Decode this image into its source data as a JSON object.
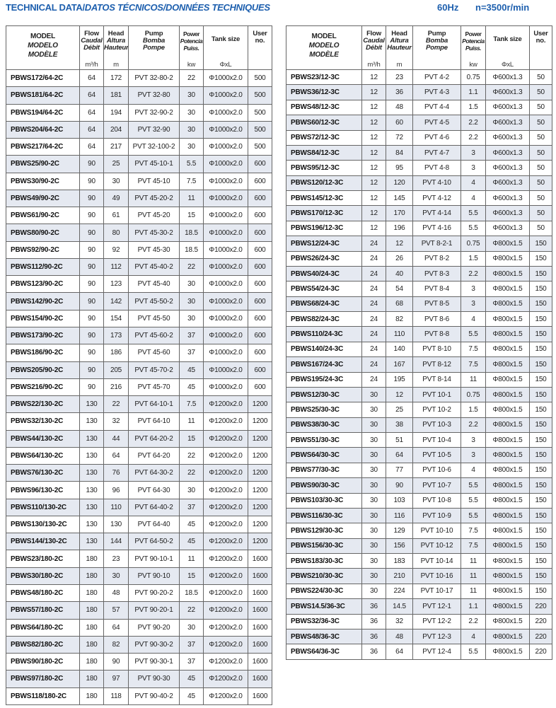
{
  "title": {
    "main": "TECHNICAL DATA/",
    "italic": "DATOS TÉCNICOS/DONNÉES TECHNIQUES"
  },
  "frequency": "60Hz",
  "speed": "n=3500r/min",
  "colors": {
    "title": "#1d5fae",
    "alt_row": "#e5e9f1"
  },
  "headers": {
    "model": [
      "MODEL",
      "MODELO",
      "MODÈLE"
    ],
    "flow": [
      "Flow",
      "Caudal",
      "Débit"
    ],
    "head": [
      "Head",
      "Altura",
      "Hauteur"
    ],
    "pump": [
      "Pump",
      "Bomba",
      "Pompe"
    ],
    "power": [
      "Power",
      "Potencia",
      "Puiss."
    ],
    "tank": "Tank size",
    "user": [
      "User",
      "no."
    ],
    "units": {
      "flow": "m³/h",
      "head": "m",
      "power": "kw",
      "tank": "ΦxL"
    }
  },
  "left_rows": [
    [
      "PBWS172/64-2C",
      "64",
      "172",
      "PVT 32-80-2",
      "22",
      "Φ1000x2.0",
      "500"
    ],
    [
      "PBWS181/64-2C",
      "64",
      "181",
      "PVT 32-80",
      "30",
      "Φ1000x2.0",
      "500"
    ],
    [
      "PBWS194/64-2C",
      "64",
      "194",
      "PVT 32-90-2",
      "30",
      "Φ1000x2.0",
      "500"
    ],
    [
      "PBWS204/64-2C",
      "64",
      "204",
      "PVT 32-90",
      "30",
      "Φ1000x2.0",
      "500"
    ],
    [
      "PBWS217/64-2C",
      "64",
      "217",
      "PVT 32-100-2",
      "30",
      "Φ1000x2.0",
      "500"
    ],
    [
      "PBWS25/90-2C",
      "90",
      "25",
      "PVT 45-10-1",
      "5.5",
      "Φ1000x2.0",
      "600"
    ],
    [
      "PBWS30/90-2C",
      "90",
      "30",
      "PVT 45-10",
      "7.5",
      "Φ1000x2.0",
      "600"
    ],
    [
      "PBWS49/90-2C",
      "90",
      "49",
      "PVT 45-20-2",
      "11",
      "Φ1000x2.0",
      "600"
    ],
    [
      "PBWS61/90-2C",
      "90",
      "61",
      "PVT 45-20",
      "15",
      "Φ1000x2.0",
      "600"
    ],
    [
      "PBWS80/90-2C",
      "90",
      "80",
      "PVT 45-30-2",
      "18.5",
      "Φ1000x2.0",
      "600"
    ],
    [
      "PBWS92/90-2C",
      "90",
      "92",
      "PVT 45-30",
      "18.5",
      "Φ1000x2.0",
      "600"
    ],
    [
      "PBWS112/90-2C",
      "90",
      "112",
      "PVT 45-40-2",
      "22",
      "Φ1000x2.0",
      "600"
    ],
    [
      "PBWS123/90-2C",
      "90",
      "123",
      "PVT 45-40",
      "30",
      "Φ1000x2.0",
      "600"
    ],
    [
      "PBWS142/90-2C",
      "90",
      "142",
      "PVT 45-50-2",
      "30",
      "Φ1000x2.0",
      "600"
    ],
    [
      "PBWS154/90-2C",
      "90",
      "154",
      "PVT 45-50",
      "30",
      "Φ1000x2.0",
      "600"
    ],
    [
      "PBWS173/90-2C",
      "90",
      "173",
      "PVT 45-60-2",
      "37",
      "Φ1000x2.0",
      "600"
    ],
    [
      "PBWS186/90-2C",
      "90",
      "186",
      "PVT 45-60",
      "37",
      "Φ1000x2.0",
      "600"
    ],
    [
      "PBWS205/90-2C",
      "90",
      "205",
      "PVT 45-70-2",
      "45",
      "Φ1000x2.0",
      "600"
    ],
    [
      "PBWS216/90-2C",
      "90",
      "216",
      "PVT 45-70",
      "45",
      "Φ1000x2.0",
      "600"
    ],
    [
      "PBWS22/130-2C",
      "130",
      "22",
      "PVT 64-10-1",
      "7.5",
      "Φ1200x2.0",
      "1200"
    ],
    [
      "PBWS32/130-2C",
      "130",
      "32",
      "PVT 64-10",
      "11",
      "Φ1200x2.0",
      "1200"
    ],
    [
      "PBWS44/130-2C",
      "130",
      "44",
      "PVT 64-20-2",
      "15",
      "Φ1200x2.0",
      "1200"
    ],
    [
      "PBWS64/130-2C",
      "130",
      "64",
      "PVT 64-20",
      "22",
      "Φ1200x2.0",
      "1200"
    ],
    [
      "PBWS76/130-2C",
      "130",
      "76",
      "PVT 64-30-2",
      "22",
      "Φ1200x2.0",
      "1200"
    ],
    [
      "PBWS96/130-2C",
      "130",
      "96",
      "PVT 64-30",
      "30",
      "Φ1200x2.0",
      "1200"
    ],
    [
      "PBWS110/130-2C",
      "130",
      "110",
      "PVT 64-40-2",
      "37",
      "Φ1200x2.0",
      "1200"
    ],
    [
      "PBWS130/130-2C",
      "130",
      "130",
      "PVT 64-40",
      "45",
      "Φ1200x2.0",
      "1200"
    ],
    [
      "PBWS144/130-2C",
      "130",
      "144",
      "PVT 64-50-2",
      "45",
      "Φ1200x2.0",
      "1200"
    ],
    [
      "PBWS23/180-2C",
      "180",
      "23",
      "PVT 90-10-1",
      "11",
      "Φ1200x2.0",
      "1600"
    ],
    [
      "PBWS30/180-2C",
      "180",
      "30",
      "PVT 90-10",
      "15",
      "Φ1200x2.0",
      "1600"
    ],
    [
      "PBWS48/180-2C",
      "180",
      "48",
      "PVT 90-20-2",
      "18.5",
      "Φ1200x2.0",
      "1600"
    ],
    [
      "PBWS57/180-2C",
      "180",
      "57",
      "PVT 90-20-1",
      "22",
      "Φ1200x2.0",
      "1600"
    ],
    [
      "PBWS64/180-2C",
      "180",
      "64",
      "PVT 90-20",
      "30",
      "Φ1200x2.0",
      "1600"
    ],
    [
      "PBWS82/180-2C",
      "180",
      "82",
      "PVT 90-30-2",
      "37",
      "Φ1200x2.0",
      "1600"
    ],
    [
      "PBWS90/180-2C",
      "180",
      "90",
      "PVT 90-30-1",
      "37",
      "Φ1200x2.0",
      "1600"
    ],
    [
      "PBWS97/180-2C",
      "180",
      "97",
      "PVT 90-30",
      "45",
      "Φ1200x2.0",
      "1600"
    ],
    [
      "PBWS118/180-2C",
      "180",
      "118",
      "PVT 90-40-2",
      "45",
      "Φ1200x2.0",
      "1600"
    ]
  ],
  "right_rows": [
    [
      "PBWS23/12-3C",
      "12",
      "23",
      "PVT 4-2",
      "0.75",
      "Φ600x1.3",
      "50"
    ],
    [
      "PBWS36/12-3C",
      "12",
      "36",
      "PVT 4-3",
      "1.1",
      "Φ600x1.3",
      "50"
    ],
    [
      "PBWS48/12-3C",
      "12",
      "48",
      "PVT 4-4",
      "1.5",
      "Φ600x1.3",
      "50"
    ],
    [
      "PBWS60/12-3C",
      "12",
      "60",
      "PVT 4-5",
      "2.2",
      "Φ600x1.3",
      "50"
    ],
    [
      "PBWS72/12-3C",
      "12",
      "72",
      "PVT 4-6",
      "2.2",
      "Φ600x1.3",
      "50"
    ],
    [
      "PBWS84/12-3C",
      "12",
      "84",
      "PVT 4-7",
      "3",
      "Φ600x1.3",
      "50"
    ],
    [
      "PBWS95/12-3C",
      "12",
      "95",
      "PVT 4-8",
      "3",
      "Φ600x1.3",
      "50"
    ],
    [
      "PBWS120/12-3C",
      "12",
      "120",
      "PVT 4-10",
      "4",
      "Φ600x1.3",
      "50"
    ],
    [
      "PBWS145/12-3C",
      "12",
      "145",
      "PVT 4-12",
      "4",
      "Φ600x1.3",
      "50"
    ],
    [
      "PBWS170/12-3C",
      "12",
      "170",
      "PVT 4-14",
      "5.5",
      "Φ600x1.3",
      "50"
    ],
    [
      "PBWS196/12-3C",
      "12",
      "196",
      "PVT 4-16",
      "5.5",
      "Φ600x1.3",
      "50"
    ],
    [
      "PBWS12/24-3C",
      "24",
      "12",
      "PVT 8-2-1",
      "0.75",
      "Φ800x1.5",
      "150"
    ],
    [
      "PBWS26/24-3C",
      "24",
      "26",
      "PVT 8-2",
      "1.5",
      "Φ800x1.5",
      "150"
    ],
    [
      "PBWS40/24-3C",
      "24",
      "40",
      "PVT 8-3",
      "2.2",
      "Φ800x1.5",
      "150"
    ],
    [
      "PBWS54/24-3C",
      "24",
      "54",
      "PVT 8-4",
      "3",
      "Φ800x1.5",
      "150"
    ],
    [
      "PBWS68/24-3C",
      "24",
      "68",
      "PVT 8-5",
      "3",
      "Φ800x1.5",
      "150"
    ],
    [
      "PBWS82/24-3C",
      "24",
      "82",
      "PVT 8-6",
      "4",
      "Φ800x1.5",
      "150"
    ],
    [
      "PBWS110/24-3C",
      "24",
      "110",
      "PVT 8-8",
      "5.5",
      "Φ800x1.5",
      "150"
    ],
    [
      "PBWS140/24-3C",
      "24",
      "140",
      "PVT 8-10",
      "7.5",
      "Φ800x1.5",
      "150"
    ],
    [
      "PBWS167/24-3C",
      "24",
      "167",
      "PVT 8-12",
      "7.5",
      "Φ800x1.5",
      "150"
    ],
    [
      "PBWS195/24-3C",
      "24",
      "195",
      "PVT 8-14",
      "11",
      "Φ800x1.5",
      "150"
    ],
    [
      "PBWS12/30-3C",
      "30",
      "12",
      "PVT 10-1",
      "0.75",
      "Φ800x1.5",
      "150"
    ],
    [
      "PBWS25/30-3C",
      "30",
      "25",
      "PVT 10-2",
      "1.5",
      "Φ800x1.5",
      "150"
    ],
    [
      "PBWS38/30-3C",
      "30",
      "38",
      "PVT 10-3",
      "2.2",
      "Φ800x1.5",
      "150"
    ],
    [
      "PBWS51/30-3C",
      "30",
      "51",
      "PVT 10-4",
      "3",
      "Φ800x1.5",
      "150"
    ],
    [
      "PBWS64/30-3C",
      "30",
      "64",
      "PVT 10-5",
      "3",
      "Φ800x1.5",
      "150"
    ],
    [
      "PBWS77/30-3C",
      "30",
      "77",
      "PVT 10-6",
      "4",
      "Φ800x1.5",
      "150"
    ],
    [
      "PBWS90/30-3C",
      "30",
      "90",
      "PVT 10-7",
      "5.5",
      "Φ800x1.5",
      "150"
    ],
    [
      "PBWS103/30-3C",
      "30",
      "103",
      "PVT 10-8",
      "5.5",
      "Φ800x1.5",
      "150"
    ],
    [
      "PBWS116/30-3C",
      "30",
      "116",
      "PVT 10-9",
      "5.5",
      "Φ800x1.5",
      "150"
    ],
    [
      "PBWS129/30-3C",
      "30",
      "129",
      "PVT 10-10",
      "7.5",
      "Φ800x1.5",
      "150"
    ],
    [
      "PBWS156/30-3C",
      "30",
      "156",
      "PVT 10-12",
      "7.5",
      "Φ800x1.5",
      "150"
    ],
    [
      "PBWS183/30-3C",
      "30",
      "183",
      "PVT 10-14",
      "11",
      "Φ800x1.5",
      "150"
    ],
    [
      "PBWS210/30-3C",
      "30",
      "210",
      "PVT 10-16",
      "11",
      "Φ800x1.5",
      "150"
    ],
    [
      "PBWS224/30-3C",
      "30",
      "224",
      "PVT 10-17",
      "11",
      "Φ800x1.5",
      "150"
    ],
    [
      "PBWS14.5/36-3C",
      "36",
      "14.5",
      "PVT 12-1",
      "1.1",
      "Φ800x1.5",
      "220"
    ],
    [
      "PBWS32/36-3C",
      "36",
      "32",
      "PVT 12-2",
      "2.2",
      "Φ800x1.5",
      "220"
    ],
    [
      "PBWS48/36-3C",
      "36",
      "48",
      "PVT 12-3",
      "4",
      "Φ800x1.5",
      "220"
    ],
    [
      "PBWS64/36-3C",
      "36",
      "64",
      "PVT 12-4",
      "5.5",
      "Φ800x1.5",
      "220"
    ]
  ]
}
